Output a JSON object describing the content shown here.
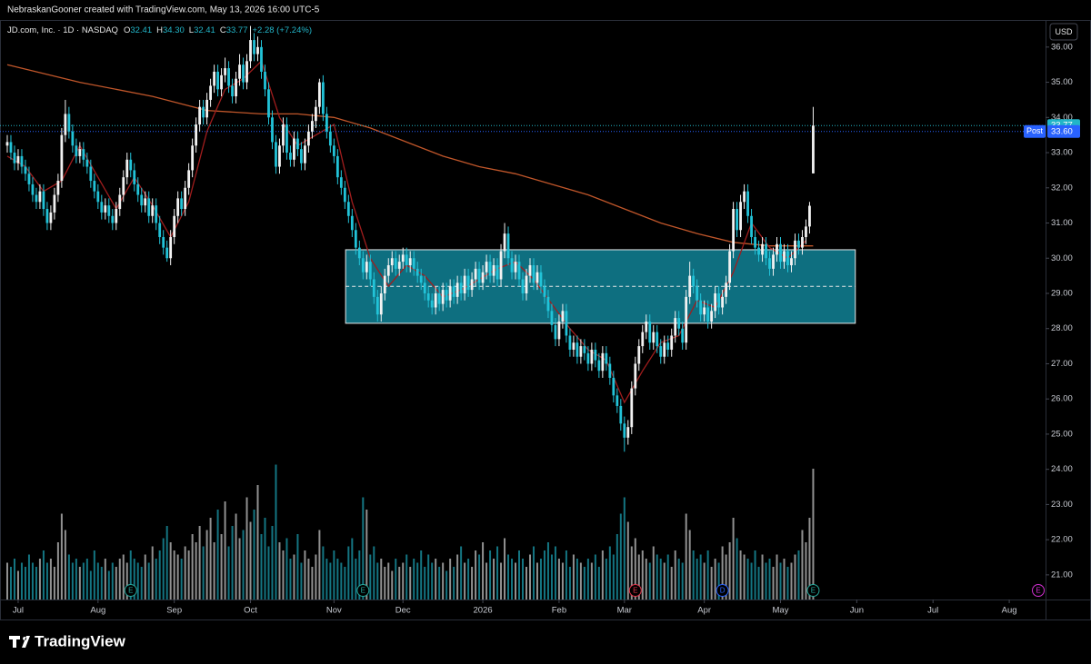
{
  "header": {
    "attribution": "NebraskanGooner created with TradingView.com, May 13, 2026 16:00 UTC-5",
    "brand": "TradingView"
  },
  "chart_data": {
    "type": "candlestick",
    "symbol": "JD.com, Inc. · 1D · NASDAQ",
    "legend_items": [
      {
        "key": "O",
        "value": 32.41
      },
      {
        "key": "H",
        "value": 34.3,
        "label": "34.30"
      },
      {
        "key": "L",
        "value": 32.41
      },
      {
        "key": "C",
        "value": 33.77
      }
    ],
    "change": "+2.28 (+7.24%)",
    "currency": "USD",
    "up_color": "#f2f2f2",
    "down_color": "#22c3d8",
    "open": [
      33.2,
      33.3,
      33.0,
      32.7,
      32.9,
      32.6,
      32.4,
      32.1,
      31.8,
      31.6,
      31.9,
      31.4,
      31.0,
      31.3,
      31.8,
      32.2,
      33.5,
      34.1,
      33.6,
      33.2,
      32.9,
      33.1,
      32.8,
      32.6,
      32.2,
      31.9,
      31.6,
      31.3,
      31.5,
      31.2,
      31.0,
      31.4,
      31.8,
      32.3,
      32.8,
      32.5,
      32.1,
      31.8,
      31.5,
      31.7,
      31.2,
      31.5,
      31.0,
      30.6,
      30.3,
      30.0,
      30.6,
      31.2,
      31.7,
      31.4,
      32.0,
      32.5,
      33.2,
      33.8,
      34.3,
      34.0,
      34.5,
      34.9,
      35.3,
      34.8,
      35.2,
      35.4,
      34.9,
      34.6,
      35.1,
      35.5,
      35.0,
      35.6,
      36.2,
      35.8,
      36.0,
      35.3,
      34.8,
      34.0,
      33.3,
      32.6,
      33.2,
      33.8,
      33.0,
      32.8,
      33.4,
      33.1,
      32.7,
      33.2,
      33.6,
      33.9,
      34.3,
      35.0,
      34.1,
      33.6,
      33.2,
      32.9,
      32.3,
      32.0,
      31.6,
      31.2,
      30.8,
      30.3,
      30.0,
      29.6,
      29.9,
      29.4,
      28.9,
      28.4,
      29.0,
      29.5,
      29.8,
      30.0,
      29.7,
      29.9,
      30.1,
      29.8,
      30.0,
      29.7,
      29.5,
      29.3,
      29.0,
      28.8,
      28.6,
      29.0,
      28.7,
      29.1,
      28.8,
      29.2,
      28.9,
      29.3,
      29.0,
      29.5,
      29.1,
      29.4,
      29.7,
      29.3,
      29.6,
      29.9,
      29.5,
      29.8,
      29.4,
      30.2,
      30.7,
      30.0,
      29.6,
      29.9,
      29.4,
      29.0,
      29.5,
      29.8,
      29.3,
      29.6,
      29.2,
      28.9,
      28.5,
      28.1,
      27.7,
      28.2,
      28.5,
      27.8,
      27.4,
      27.6,
      27.2,
      27.5,
      27.3,
      27.0,
      27.4,
      27.1,
      26.8,
      27.3,
      27.0,
      26.6,
      26.1,
      25.8,
      25.3,
      24.9,
      25.2,
      26.3,
      27.0,
      27.5,
      27.9,
      28.2,
      27.6,
      27.9,
      27.5,
      27.2,
      27.6,
      27.4,
      27.8,
      28.3,
      28.0,
      27.6,
      28.9,
      29.5,
      29.2,
      28.8,
      28.4,
      28.6,
      28.2,
      28.5,
      29.0,
      28.6,
      28.9,
      29.3,
      30.2,
      31.4,
      30.8,
      31.6,
      31.9,
      31.2,
      30.6,
      30.3,
      30.1,
      30.4,
      30.0,
      29.7,
      30.1,
      30.4,
      29.9,
      30.2,
      29.8,
      30.0,
      30.5,
      30.3,
      30.6,
      30.9,
      32.41
    ],
    "high": [
      33.5,
      33.5,
      33.2,
      33.1,
      33.1,
      32.8,
      32.6,
      32.3,
      32.0,
      32.1,
      32.1,
      31.6,
      31.5,
      32.0,
      32.4,
      33.7,
      34.5,
      34.3,
      33.8,
      33.4,
      33.3,
      33.3,
      33.0,
      32.8,
      32.4,
      32.1,
      31.8,
      31.7,
      31.7,
      31.4,
      31.6,
      32.0,
      32.5,
      33.0,
      33.0,
      32.7,
      32.3,
      32.0,
      31.9,
      31.9,
      31.7,
      31.7,
      31.2,
      30.8,
      30.5,
      30.8,
      31.4,
      31.9,
      31.9,
      32.2,
      32.7,
      33.4,
      34.0,
      34.5,
      34.5,
      34.7,
      35.1,
      35.5,
      35.5,
      35.4,
      35.7,
      35.6,
      35.1,
      35.3,
      35.8,
      35.7,
      35.8,
      36.6,
      36.4,
      36.3,
      36.2,
      35.5,
      35.0,
      34.2,
      33.5,
      33.4,
      34.0,
      34.0,
      33.2,
      33.6,
      33.6,
      33.3,
      33.4,
      33.8,
      34.1,
      34.5,
      35.1,
      35.2,
      34.3,
      33.8,
      33.4,
      33.1,
      32.5,
      32.2,
      31.8,
      31.4,
      31.0,
      30.5,
      30.2,
      30.1,
      30.1,
      29.6,
      29.1,
      29.2,
      29.7,
      30.0,
      30.2,
      30.2,
      30.1,
      30.3,
      30.3,
      30.2,
      30.2,
      29.9,
      29.7,
      29.5,
      29.2,
      29.0,
      29.2,
      29.2,
      29.3,
      29.3,
      29.4,
      29.4,
      29.5,
      29.5,
      29.7,
      29.7,
      29.6,
      29.9,
      29.9,
      29.8,
      30.1,
      30.1,
      30.0,
      30.0,
      30.4,
      31.0,
      30.9,
      30.2,
      30.1,
      30.1,
      29.6,
      29.7,
      30.0,
      30.0,
      29.8,
      29.8,
      29.4,
      29.1,
      28.7,
      28.3,
      28.4,
      28.7,
      28.7,
      28.0,
      27.8,
      27.8,
      27.7,
      27.7,
      27.5,
      27.6,
      27.6,
      27.3,
      27.5,
      27.5,
      27.2,
      26.8,
      26.3,
      26.0,
      25.5,
      25.4,
      26.5,
      27.2,
      27.7,
      28.1,
      28.4,
      28.4,
      28.1,
      28.1,
      27.7,
      27.8,
      27.8,
      28.0,
      28.5,
      28.5,
      28.2,
      29.1,
      29.9,
      29.7,
      29.4,
      29.0,
      28.8,
      28.8,
      28.7,
      29.2,
      29.2,
      29.1,
      29.5,
      30.4,
      31.6,
      31.6,
      31.8,
      32.1,
      32.1,
      31.4,
      30.8,
      30.5,
      30.6,
      30.6,
      30.2,
      30.3,
      30.6,
      30.6,
      30.4,
      30.4,
      30.2,
      30.7,
      30.7,
      30.8,
      31.1,
      31.6,
      34.3
    ],
    "low": [
      33.0,
      32.8,
      32.5,
      32.5,
      32.4,
      32.2,
      31.9,
      31.6,
      31.4,
      31.4,
      31.2,
      30.8,
      30.8,
      31.1,
      31.6,
      32.0,
      33.3,
      33.4,
      33.0,
      32.7,
      32.7,
      32.6,
      32.4,
      32.0,
      31.7,
      31.4,
      31.1,
      31.1,
      31.0,
      30.8,
      30.8,
      31.2,
      31.6,
      32.1,
      32.3,
      31.9,
      31.6,
      31.3,
      31.3,
      31.0,
      31.0,
      30.8,
      30.4,
      30.1,
      29.9,
      29.8,
      30.4,
      31.0,
      31.2,
      31.2,
      31.8,
      32.3,
      33.0,
      33.6,
      33.8,
      33.8,
      34.3,
      34.7,
      34.6,
      34.6,
      35.0,
      34.7,
      34.4,
      34.4,
      34.9,
      34.8,
      34.8,
      35.4,
      35.6,
      35.6,
      35.1,
      34.6,
      33.8,
      33.1,
      32.4,
      32.4,
      33.0,
      32.8,
      32.6,
      32.6,
      32.9,
      32.5,
      32.5,
      33.0,
      33.4,
      33.7,
      34.1,
      33.9,
      33.4,
      33.0,
      32.7,
      32.1,
      31.8,
      31.4,
      31.0,
      30.6,
      30.1,
      29.8,
      29.4,
      29.4,
      29.2,
      28.7,
      28.2,
      28.2,
      28.8,
      29.3,
      29.6,
      29.5,
      29.5,
      29.7,
      29.6,
      29.6,
      29.5,
      29.3,
      29.1,
      28.8,
      28.6,
      28.4,
      28.4,
      28.5,
      28.5,
      28.6,
      28.6,
      28.7,
      28.7,
      28.8,
      28.8,
      28.9,
      28.9,
      29.2,
      29.1,
      29.1,
      29.4,
      29.3,
      29.3,
      29.2,
      29.2,
      30.0,
      29.8,
      29.4,
      29.4,
      29.2,
      28.8,
      28.8,
      29.3,
      29.1,
      29.1,
      29.0,
      28.7,
      28.3,
      27.9,
      27.5,
      27.5,
      28.0,
      27.6,
      27.2,
      27.2,
      27.0,
      27.0,
      27.1,
      26.8,
      26.8,
      26.9,
      26.6,
      26.6,
      26.8,
      26.4,
      25.9,
      25.6,
      25.1,
      24.5,
      24.7,
      25.0,
      26.1,
      26.8,
      27.3,
      27.7,
      27.4,
      27.4,
      27.3,
      27.0,
      27.0,
      27.2,
      27.2,
      27.6,
      27.8,
      27.4,
      27.4,
      28.7,
      29.0,
      28.6,
      28.2,
      28.2,
      28.0,
      28.0,
      28.3,
      28.4,
      28.4,
      28.7,
      29.1,
      30.0,
      30.6,
      30.6,
      31.4,
      31.0,
      30.4,
      30.1,
      29.9,
      29.9,
      29.8,
      29.5,
      29.5,
      29.9,
      29.7,
      29.7,
      29.6,
      29.6,
      29.8,
      30.1,
      30.1,
      30.4,
      30.7,
      32.41
    ],
    "close": [
      33.3,
      33.0,
      32.7,
      32.9,
      32.6,
      32.4,
      32.1,
      31.8,
      31.6,
      31.9,
      31.4,
      31.0,
      31.3,
      31.8,
      32.2,
      33.5,
      34.1,
      33.6,
      33.2,
      32.9,
      33.1,
      32.8,
      32.6,
      32.2,
      31.9,
      31.6,
      31.3,
      31.5,
      31.2,
      31.0,
      31.4,
      31.8,
      32.3,
      32.8,
      32.5,
      32.1,
      31.8,
      31.5,
      31.7,
      31.2,
      31.5,
      31.0,
      30.6,
      30.3,
      30.0,
      30.6,
      31.2,
      31.7,
      31.4,
      32.0,
      32.5,
      33.2,
      33.8,
      34.3,
      34.0,
      34.5,
      34.9,
      35.3,
      34.8,
      35.2,
      35.4,
      34.9,
      34.6,
      35.1,
      35.5,
      35.0,
      35.6,
      36.2,
      35.8,
      36.0,
      35.3,
      34.8,
      34.0,
      33.3,
      32.6,
      33.2,
      33.8,
      33.0,
      32.8,
      33.4,
      33.1,
      32.7,
      33.2,
      33.6,
      33.9,
      34.3,
      35.0,
      34.1,
      33.6,
      33.2,
      32.9,
      32.3,
      32.0,
      31.6,
      31.2,
      30.8,
      30.3,
      30.0,
      29.6,
      29.9,
      29.4,
      28.9,
      28.4,
      29.0,
      29.5,
      29.8,
      30.0,
      29.7,
      29.9,
      30.1,
      29.8,
      30.0,
      29.7,
      29.5,
      29.3,
      29.0,
      28.8,
      28.6,
      29.0,
      28.7,
      29.1,
      28.8,
      29.2,
      28.9,
      29.3,
      29.0,
      29.5,
      29.1,
      29.4,
      29.7,
      29.3,
      29.6,
      29.9,
      29.5,
      29.8,
      29.4,
      30.2,
      30.7,
      30.0,
      29.6,
      29.9,
      29.4,
      29.0,
      29.5,
      29.8,
      29.3,
      29.6,
      29.2,
      28.9,
      28.5,
      28.1,
      27.7,
      28.2,
      28.5,
      27.8,
      27.4,
      27.6,
      27.2,
      27.5,
      27.3,
      27.0,
      27.4,
      27.1,
      26.8,
      27.3,
      27.0,
      26.6,
      26.1,
      25.8,
      25.3,
      24.9,
      25.2,
      26.3,
      27.0,
      27.5,
      27.9,
      28.2,
      27.6,
      27.9,
      27.5,
      27.2,
      27.6,
      27.4,
      27.8,
      28.3,
      28.0,
      27.6,
      28.9,
      29.5,
      29.2,
      28.8,
      28.4,
      28.6,
      28.2,
      28.5,
      29.0,
      28.6,
      28.9,
      29.3,
      30.2,
      31.4,
      30.8,
      31.6,
      31.9,
      31.2,
      30.6,
      30.3,
      30.1,
      30.4,
      30.0,
      29.7,
      30.1,
      30.4,
      29.9,
      30.2,
      29.8,
      30.0,
      30.5,
      30.3,
      30.6,
      30.9,
      31.49,
      33.77
    ],
    "volume": [
      9,
      8,
      10,
      7,
      9,
      8,
      11,
      9,
      8,
      10,
      12,
      9,
      10,
      8,
      14,
      21,
      17,
      11,
      9,
      10,
      8,
      9,
      10,
      7,
      12,
      9,
      8,
      10,
      7,
      9,
      8,
      10,
      11,
      9,
      12,
      10,
      9,
      8,
      11,
      9,
      13,
      10,
      12,
      15,
      18,
      14,
      12,
      11,
      10,
      13,
      12,
      16,
      14,
      18,
      13,
      17,
      20,
      14,
      22,
      16,
      24,
      13,
      18,
      21,
      15,
      17,
      25,
      19,
      22,
      28,
      16,
      20,
      13,
      18,
      33,
      14,
      12,
      15,
      10,
      11,
      16,
      9,
      12,
      10,
      8,
      11,
      17,
      13,
      10,
      9,
      12,
      10,
      9,
      8,
      13,
      15,
      10,
      12,
      25,
      22,
      11,
      13,
      9,
      10,
      8,
      9,
      7,
      10,
      8,
      9,
      11,
      8,
      10,
      9,
      12,
      8,
      11,
      9,
      10,
      8,
      9,
      7,
      10,
      8,
      11,
      13,
      9,
      10,
      8,
      12,
      11,
      14,
      9,
      12,
      10,
      13,
      9,
      15,
      11,
      10,
      9,
      12,
      10,
      8,
      11,
      13,
      9,
      10,
      12,
      14,
      11,
      13,
      10,
      9,
      12,
      8,
      11,
      10,
      9,
      8,
      10,
      9,
      11,
      8,
      12,
      10,
      13,
      11,
      16,
      21,
      25,
      19,
      13,
      15,
      11,
      12,
      10,
      9,
      13,
      11,
      10,
      9,
      11,
      8,
      12,
      10,
      9,
      21,
      17,
      12,
      10,
      11,
      9,
      12,
      8,
      10,
      9,
      13,
      11,
      14,
      20,
      15,
      12,
      11,
      10,
      9,
      12,
      8,
      11,
      9,
      10,
      8,
      11,
      9,
      10,
      8,
      9,
      11,
      12,
      17,
      14,
      20,
      32
    ],
    "volume_ylim": [
      0,
      40
    ],
    "moving_averages": [
      {
        "color": "#c0562a",
        "x": [
          0,
          20,
          40,
          55,
          70,
          80,
          90,
          100,
          110,
          120,
          130,
          140,
          150,
          160,
          170,
          180,
          190,
          200,
          210,
          222
        ],
        "values": [
          35.5,
          35.0,
          34.6,
          34.2,
          34.1,
          34.1,
          34.0,
          33.7,
          33.3,
          32.9,
          32.6,
          32.4,
          32.1,
          31.8,
          31.4,
          31.0,
          30.7,
          30.45,
          30.35,
          30.35
        ]
      },
      {
        "color": "#a11d1d",
        "x": [
          0,
          5,
          10,
          15,
          20,
          25,
          30,
          35,
          40,
          45,
          50,
          55,
          60,
          65,
          70,
          75,
          80,
          85,
          90,
          95,
          100,
          105,
          110,
          115,
          120,
          125,
          130,
          135,
          140,
          145,
          150,
          155,
          160,
          165,
          170,
          175,
          180,
          185,
          190,
          195,
          200,
          205,
          210,
          215,
          220
        ],
        "values": [
          32.9,
          32.6,
          31.9,
          32.2,
          33.2,
          32.3,
          31.4,
          32.3,
          31.5,
          30.6,
          31.6,
          33.6,
          34.8,
          35.1,
          35.6,
          34.0,
          33.2,
          33.5,
          33.8,
          31.6,
          30.0,
          29.2,
          29.8,
          29.5,
          28.9,
          29.1,
          29.4,
          29.7,
          29.9,
          29.4,
          28.7,
          28.0,
          27.4,
          27.1,
          25.9,
          26.8,
          27.6,
          27.8,
          28.8,
          28.6,
          29.6,
          31.0,
          30.3,
          30.0,
          30.5
        ]
      }
    ],
    "zone": {
      "top": 30.24,
      "bottom": 28.15,
      "midline": 29.2,
      "x_start": 93.2,
      "x_end": 233.6,
      "color": "#0e6f80"
    },
    "post_market": {
      "name": "Post",
      "price": {
        "value": 33.6,
        "label": "33.60"
      }
    },
    "last_color": "#22b5c8",
    "post_color": "#2962ff",
    "events": [
      {
        "x": 34,
        "label": "E",
        "color": "#26a69a"
      },
      {
        "x": 98,
        "label": "E",
        "color": "#26a69a"
      },
      {
        "x": 173,
        "label": "E",
        "color": "#e0344a"
      },
      {
        "x": 197,
        "label": "D",
        "color": "#2962ff"
      },
      {
        "x": 222,
        "label": "E",
        "color": "#26a69a"
      },
      {
        "x": 284,
        "label": "E",
        "color": "#d030d0"
      }
    ],
    "xlim": [
      -2,
      286
    ],
    "xticks": [
      {
        "value": 3,
        "label": "Jul"
      },
      {
        "value": 25,
        "label": "Aug"
      },
      {
        "value": 46,
        "label": "Sep"
      },
      {
        "value": 67,
        "label": "Oct"
      },
      {
        "value": 90,
        "label": "Nov"
      },
      {
        "value": 109,
        "label": "Dec"
      },
      {
        "value": 131,
        "label": "2026"
      },
      {
        "value": 152,
        "label": "Feb"
      },
      {
        "value": 170,
        "label": "Mar"
      },
      {
        "value": 192,
        "label": "Apr"
      },
      {
        "value": 213,
        "label": "May"
      },
      {
        "value": 234,
        "label": "Jun"
      },
      {
        "value": 255,
        "label": "Jul"
      },
      {
        "value": 276,
        "label": "Aug"
      }
    ],
    "ylim": [
      20.3,
      36.77
    ],
    "yticks": [
      {
        "value": 21,
        "label": "21.00"
      },
      {
        "value": 22,
        "label": "22.00"
      },
      {
        "value": 23,
        "label": "23.00"
      },
      {
        "value": 24,
        "label": "24.00"
      },
      {
        "value": 25,
        "label": "25.00"
      },
      {
        "value": 26,
        "label": "26.00"
      },
      {
        "value": 27,
        "label": "27.00"
      },
      {
        "value": 28,
        "label": "28.00"
      },
      {
        "value": 29,
        "label": "29.00"
      },
      {
        "value": 30,
        "label": "30.00"
      },
      {
        "value": 31,
        "label": "31.00"
      },
      {
        "value": 32,
        "label": "32.00"
      },
      {
        "value": 33,
        "label": "33.00"
      },
      {
        "value": 34,
        "label": "34.00"
      },
      {
        "value": 35,
        "label": "35.00"
      },
      {
        "value": 36,
        "label": "36.00"
      }
    ]
  }
}
